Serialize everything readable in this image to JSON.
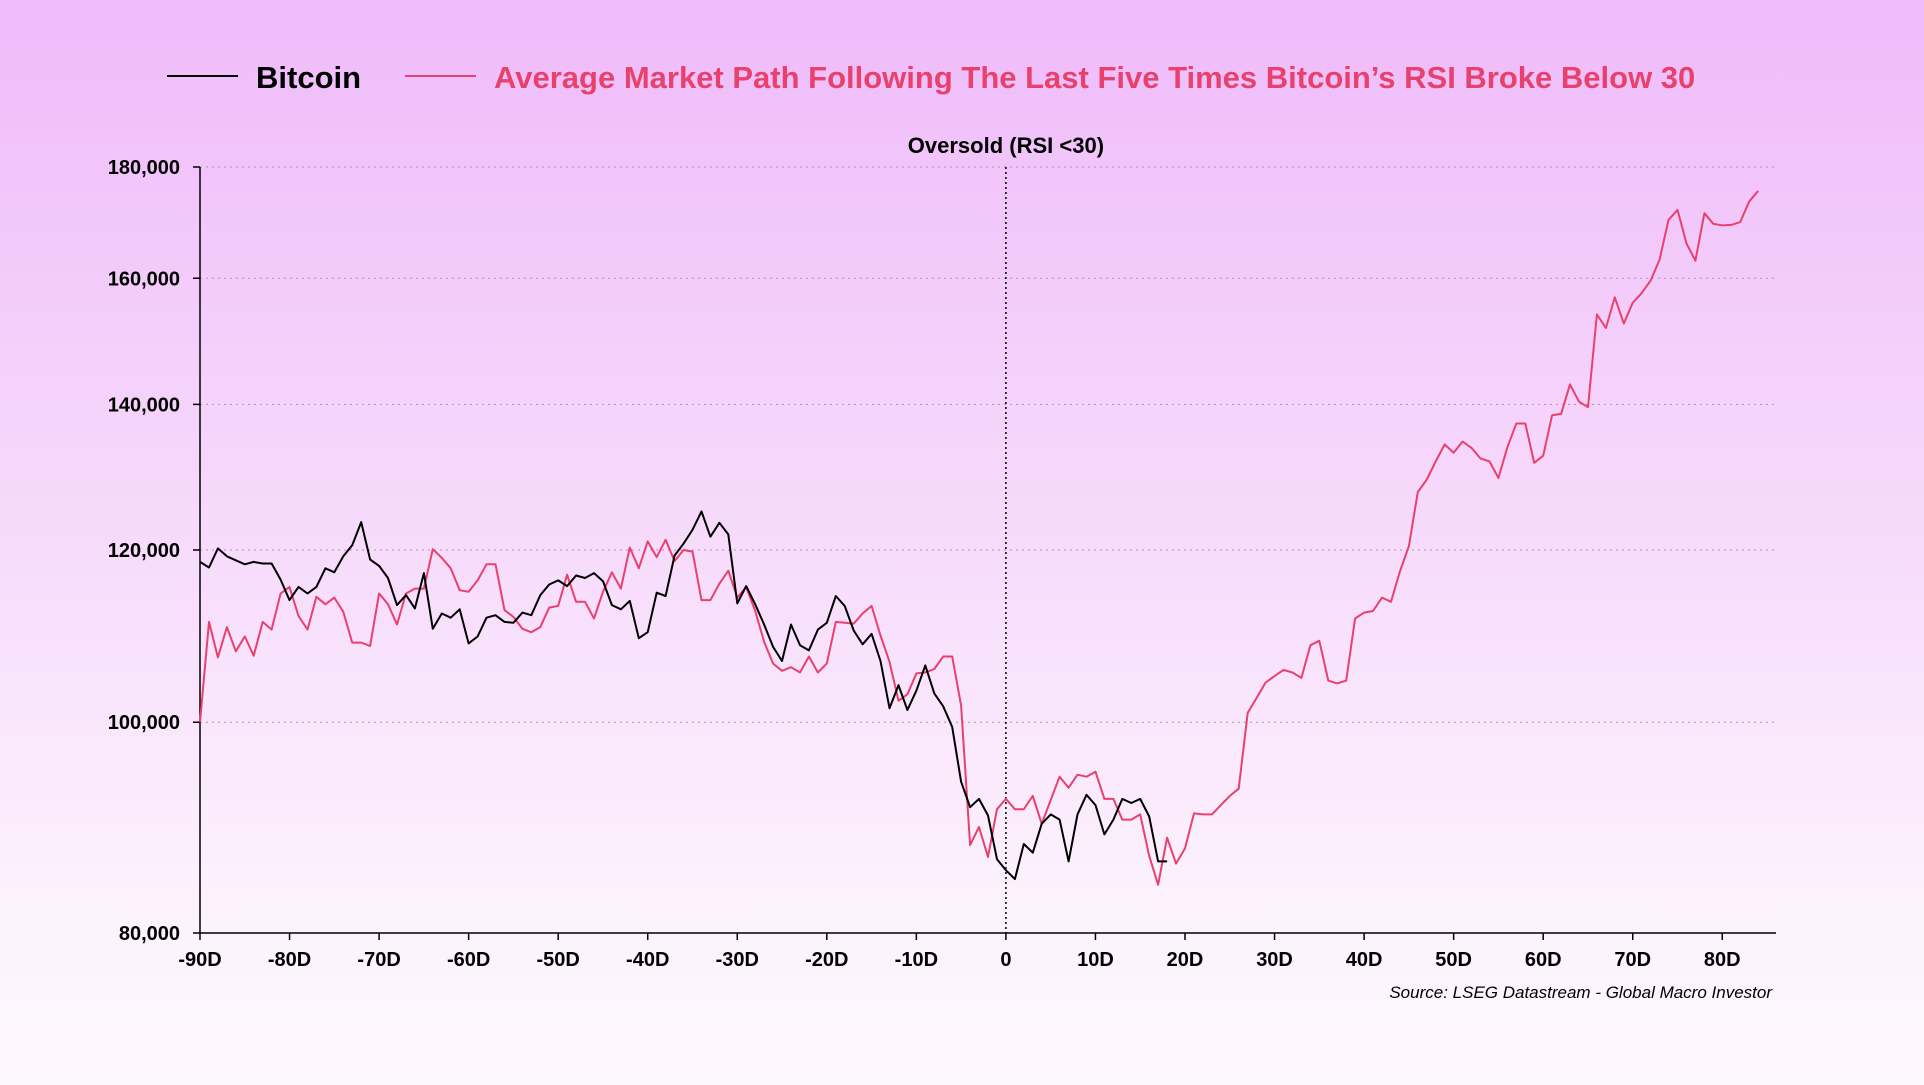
{
  "chart_data": {
    "type": "line",
    "title": "",
    "annotation": "Oversold (RSI <30)",
    "source": "Source: LSEG Datastream - Global Macro Investor",
    "xlabel": "",
    "ylabel": "",
    "y_scale": "log",
    "ylim": [
      80000,
      180000
    ],
    "xlim": [
      -90,
      86
    ],
    "y_ticks": [
      {
        "v": 80000,
        "label": "80,000"
      },
      {
        "v": 100000,
        "label": "100,000"
      },
      {
        "v": 120000,
        "label": "120,000"
      },
      {
        "v": 140000,
        "label": "140,000"
      },
      {
        "v": 160000,
        "label": "160,000"
      },
      {
        "v": 180000,
        "label": "180,000"
      }
    ],
    "x_ticks": [
      {
        "v": -90,
        "label": "-90D"
      },
      {
        "v": -80,
        "label": "-80D"
      },
      {
        "v": -70,
        "label": "-70D"
      },
      {
        "v": -60,
        "label": "-60D"
      },
      {
        "v": -50,
        "label": "-50D"
      },
      {
        "v": -40,
        "label": "-40D"
      },
      {
        "v": -30,
        "label": "-30D"
      },
      {
        "v": -20,
        "label": "-20D"
      },
      {
        "v": -10,
        "label": "-10D"
      },
      {
        "v": 0,
        "label": "0"
      },
      {
        "v": 10,
        "label": "10D"
      },
      {
        "v": 20,
        "label": "20D"
      },
      {
        "v": 30,
        "label": "30D"
      },
      {
        "v": 40,
        "label": "40D"
      },
      {
        "v": 50,
        "label": "50D"
      },
      {
        "v": 60,
        "label": "60D"
      },
      {
        "v": 70,
        "label": "70D"
      },
      {
        "v": 80,
        "label": "80D"
      }
    ],
    "grid": "horizontal dotted",
    "legend_position": "top",
    "series": [
      {
        "name": "Bitcoin",
        "color": "#000000",
        "x_start": -90,
        "values": [
          118.5,
          117.8,
          120.2,
          119.2,
          118.7,
          118.2,
          118.5,
          118.3,
          118.3,
          116.3,
          113.8,
          115.4,
          114.6,
          115.4,
          117.7,
          117.2,
          119.2,
          120.6,
          123.6,
          118.8,
          118,
          116.5,
          113.2,
          114.4,
          112.8,
          117.1,
          110.4,
          112.2,
          111.7,
          112.7,
          108.7,
          109.5,
          111.7,
          112,
          111.2,
          111.1,
          112.3,
          112,
          114.4,
          115.7,
          116.2,
          115.5,
          116.8,
          116.5,
          117.1,
          116.1,
          113.2,
          112.7,
          113.7,
          109.3,
          110,
          114.7,
          114.3,
          119.3,
          120.8,
          122.6,
          125,
          121.7,
          123.5,
          122,
          113.4,
          115.5,
          113.3,
          110.9,
          108.3,
          106.7,
          110.9,
          108.5,
          107.9,
          110.3,
          111.1,
          114.3,
          113.1,
          110.2,
          108.6,
          109.8,
          106.7,
          101.5,
          104,
          101.3,
          103.4,
          106.2,
          103.1,
          101.7,
          99.5,
          93.9,
          91.4,
          92.2,
          90.6,
          86.5,
          85.5,
          84.7,
          87.9,
          87.1,
          89.8,
          90.7,
          90.2,
          86.3,
          90.7,
          92.6,
          91.6,
          88.8,
          90.2,
          92.2,
          91.8,
          92.2,
          90.5,
          86.3,
          86.3
        ]
      },
      {
        "name": "Average Market Path Following The Last Five Times Bitcoin’s RSI Broke Below 30",
        "color": "#e8416d",
        "x_start": -90,
        "values": [
          100,
          111.2,
          107.1,
          110.6,
          107.8,
          109.5,
          107.3,
          111.2,
          110.3,
          114.6,
          115.4,
          111.9,
          110.3,
          114.2,
          113.3,
          114.1,
          112.4,
          108.8,
          108.8,
          108.4,
          114.6,
          113.3,
          110.9,
          114.6,
          115.2,
          115.2,
          120.1,
          119,
          117.7,
          115,
          114.8,
          116.2,
          118.2,
          118.2,
          112.6,
          111.8,
          110.4,
          110,
          110.6,
          112.9,
          113.1,
          116.9,
          113.6,
          113.6,
          111.6,
          114.8,
          117.2,
          115.2,
          120.3,
          117.7,
          121.1,
          119.1,
          121.3,
          118.6,
          120,
          119.8,
          113.8,
          113.8,
          115.8,
          117.4,
          114.1,
          115.4,
          112.5,
          108.9,
          106.4,
          105.6,
          106,
          105.4,
          107.2,
          105.4,
          106.4,
          111.2,
          111.1,
          111,
          112.2,
          113.1,
          109.6,
          106.6,
          102.3,
          103,
          105.3,
          105.4,
          105.8,
          107.2,
          107.2,
          101.8,
          87.8,
          89.5,
          86.7,
          91.2,
          92.2,
          91.2,
          91.2,
          92.5,
          89.8,
          92.1,
          94.4,
          93.3,
          94.6,
          94.4,
          94.9,
          92.2,
          92.2,
          90.2,
          90.2,
          90.7,
          86.8,
          84.2,
          88.5,
          86.1,
          87.5,
          90.8,
          90.7,
          90.7,
          91.6,
          92.5,
          93.2,
          101,
          102.6,
          104.3,
          105,
          105.7,
          105.4,
          104.8,
          108.5,
          109,
          104.5,
          104.2,
          104.5,
          111.6,
          112.3,
          112.5,
          114.1,
          113.6,
          117.3,
          120.5,
          127.6,
          129.3,
          131.8,
          134.2,
          133,
          134.6,
          133.7,
          132.2,
          131.8,
          129.5,
          133.8,
          137.2,
          137.2,
          131.6,
          132.6,
          138.4,
          138.6,
          143,
          140.4,
          139.6,
          154,
          151.8,
          156.8,
          152.5,
          155.9,
          157.5,
          159.6,
          163.2,
          170.2,
          172,
          166,
          163,
          171.4,
          169.5,
          169.2,
          169.3,
          169.8,
          173.5,
          175.5
        ]
      }
    ],
    "value_unit": "thousands"
  }
}
